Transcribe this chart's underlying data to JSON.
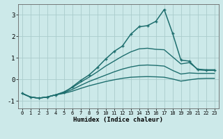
{
  "xlabel": "Humidex (Indice chaleur)",
  "background_color": "#cce9e9",
  "grid_color": "#aacccc",
  "line_color": "#1e6e6e",
  "xlim": [
    -0.5,
    23.5
  ],
  "ylim": [
    -1.35,
    3.5
  ],
  "x_ticks": [
    0,
    1,
    2,
    3,
    4,
    5,
    6,
    7,
    8,
    9,
    10,
    11,
    12,
    13,
    14,
    15,
    16,
    17,
    18,
    19,
    20,
    21,
    22,
    23
  ],
  "y_ticks": [
    -1,
    0,
    1,
    2,
    3
  ],
  "series": [
    {
      "x": [
        0,
        1,
        2,
        3,
        4,
        5,
        6,
        7,
        8,
        9,
        10,
        11,
        12,
        13,
        14,
        15,
        16,
        17,
        18,
        19,
        20,
        21,
        22,
        23
      ],
      "y": [
        -0.65,
        -0.82,
        -0.87,
        -0.82,
        -0.72,
        -0.62,
        -0.35,
        -0.05,
        0.2,
        0.55,
        0.95,
        1.3,
        1.55,
        2.1,
        2.45,
        2.5,
        2.7,
        3.25,
        2.15,
        0.9,
        0.85,
        0.45,
        0.42,
        0.42
      ],
      "marker": "+",
      "markersize": 3.5,
      "linewidth": 1.1,
      "linestyle": "-"
    },
    {
      "x": [
        0,
        1,
        2,
        3,
        4,
        5,
        6,
        7,
        8,
        9,
        10,
        11,
        12,
        13,
        14,
        15,
        16,
        17,
        18,
        19,
        20,
        21,
        22,
        23
      ],
      "y": [
        -0.65,
        -0.82,
        -0.87,
        -0.82,
        -0.72,
        -0.58,
        -0.38,
        -0.13,
        0.1,
        0.35,
        0.62,
        0.85,
        1.08,
        1.28,
        1.42,
        1.45,
        1.4,
        1.38,
        1.05,
        0.72,
        0.78,
        0.48,
        0.45,
        0.45
      ],
      "marker": null,
      "linewidth": 1.0,
      "linestyle": "-"
    },
    {
      "x": [
        0,
        1,
        2,
        3,
        4,
        5,
        6,
        7,
        8,
        9,
        10,
        11,
        12,
        13,
        14,
        15,
        16,
        17,
        18,
        19,
        20,
        21,
        22,
        23
      ],
      "y": [
        -0.65,
        -0.82,
        -0.87,
        -0.82,
        -0.72,
        -0.62,
        -0.47,
        -0.28,
        -0.1,
        0.05,
        0.2,
        0.35,
        0.48,
        0.58,
        0.65,
        0.67,
        0.65,
        0.62,
        0.42,
        0.25,
        0.3,
        0.28,
        0.28,
        0.28
      ],
      "marker": null,
      "linewidth": 1.0,
      "linestyle": "-"
    },
    {
      "x": [
        0,
        1,
        2,
        3,
        4,
        5,
        6,
        7,
        8,
        9,
        10,
        11,
        12,
        13,
        14,
        15,
        16,
        17,
        18,
        19,
        20,
        21,
        22,
        23
      ],
      "y": [
        -0.65,
        -0.82,
        -0.87,
        -0.82,
        -0.72,
        -0.65,
        -0.55,
        -0.42,
        -0.3,
        -0.2,
        -0.1,
        -0.02,
        0.05,
        0.1,
        0.12,
        0.13,
        0.12,
        0.1,
        0.02,
        -0.08,
        -0.02,
        0.03,
        0.05,
        0.05
      ],
      "marker": null,
      "linewidth": 1.0,
      "linestyle": "-"
    }
  ]
}
